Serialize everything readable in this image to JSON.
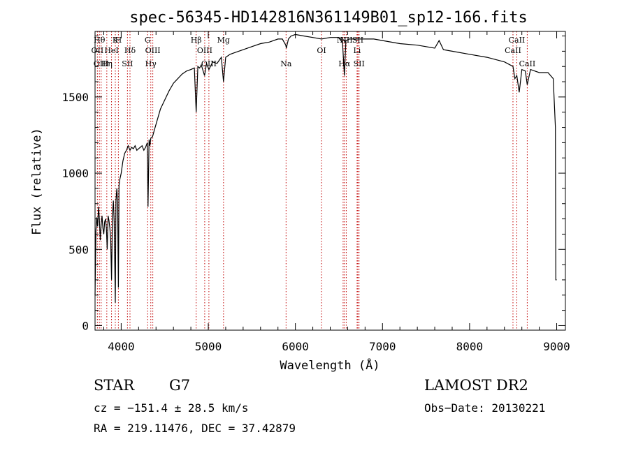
{
  "chart_data": {
    "type": "line",
    "title": "spec-56345-HD142816N361149B01_sp12-166.fits",
    "xlabel": "Wavelength (Å)",
    "ylabel": "Flux (relative)",
    "xlim": [
      3700,
      9100
    ],
    "ylim": [
      -30,
      1930
    ],
    "x_ticks": [
      4000,
      5000,
      6000,
      7000,
      8000,
      9000
    ],
    "y_ticks": [
      0,
      500,
      1000,
      1500
    ],
    "grid": false,
    "series": [
      {
        "x": [
          3700,
          3710,
          3720,
          3730,
          3740,
          3750,
          3760,
          3770,
          3780,
          3790,
          3800,
          3810,
          3820,
          3830,
          3840,
          3850,
          3860,
          3870,
          3880,
          3889,
          3900,
          3910,
          3920,
          3933,
          3940,
          3950,
          3960,
          3968,
          3975,
          3985,
          4000,
          4020,
          4040,
          4060,
          4080,
          4101,
          4120,
          4140,
          4160,
          4180,
          4200,
          4220,
          4240,
          4260,
          4280,
          4300,
          4308,
          4320,
          4330,
          4340,
          4360,
          4380,
          4400,
          4450,
          4500,
          4550,
          4600,
          4650,
          4700,
          4750,
          4800,
          4840,
          4861,
          4880,
          4900,
          4920,
          4957,
          4980,
          5007,
          5050,
          5100,
          5150,
          5175,
          5200,
          5250,
          5300,
          5400,
          5500,
          5600,
          5700,
          5800,
          5850,
          5890,
          5896,
          5920,
          5950,
          6000,
          6100,
          6200,
          6300,
          6400,
          6500,
          6540,
          6563,
          6580,
          6620,
          6700,
          6800,
          6900,
          7000,
          7200,
          7400,
          7600,
          7650,
          7700,
          7800,
          8000,
          8200,
          8400,
          8498,
          8520,
          8542,
          8570,
          8600,
          8640,
          8662,
          8700,
          8800,
          8900,
          8960,
          8985,
          8990,
          9000
        ],
        "y": [
          200,
          620,
          710,
          650,
          780,
          700,
          560,
          660,
          720,
          640,
          600,
          680,
          700,
          640,
          500,
          720,
          690,
          640,
          560,
          300,
          720,
          820,
          680,
          150,
          820,
          900,
          780,
          250,
          920,
          960,
          1000,
          1080,
          1130,
          1150,
          1180,
          1150,
          1170,
          1160,
          1180,
          1150,
          1160,
          1170,
          1180,
          1150,
          1170,
          1200,
          780,
          1220,
          1180,
          1230,
          1240,
          1280,
          1320,
          1420,
          1480,
          1540,
          1590,
          1620,
          1650,
          1670,
          1680,
          1690,
          1400,
          1700,
          1690,
          1710,
          1640,
          1720,
          1680,
          1730,
          1720,
          1760,
          1600,
          1760,
          1780,
          1790,
          1810,
          1830,
          1850,
          1860,
          1880,
          1880,
          1840,
          1820,
          1880,
          1900,
          1910,
          1900,
          1890,
          1880,
          1890,
          1890,
          1870,
          1640,
          1870,
          1880,
          1880,
          1880,
          1880,
          1870,
          1850,
          1840,
          1820,
          1870,
          1810,
          1800,
          1780,
          1760,
          1730,
          1700,
          1620,
          1640,
          1530,
          1680,
          1670,
          1580,
          1680,
          1660,
          1660,
          1620,
          1300,
          300,
          300
        ]
      }
    ],
    "line_markers": [
      {
        "x": 3727,
        "top": "OII",
        "row": 1
      },
      {
        "x": 3750,
        "top": "Hθ",
        "row": 0
      },
      {
        "x": 3770,
        "top": "OIII",
        "row": 2
      },
      {
        "x": 3835,
        "top": "Hη",
        "row": 2
      },
      {
        "x": 3889,
        "top": "HeI",
        "row": 1
      },
      {
        "x": 3933,
        "top": "K",
        "row": 0
      },
      {
        "x": 3968,
        "top": "H",
        "row": 0
      },
      {
        "x": 4101,
        "top": "Hδ",
        "row": 1
      },
      {
        "x": 4072,
        "top": "SII",
        "row": 2
      },
      {
        "x": 4304,
        "top": "G",
        "row": 0
      },
      {
        "x": 4363,
        "top": "OIII",
        "row": 1
      },
      {
        "x": 4340,
        "top": "Hγ",
        "row": 2
      },
      {
        "x": 4861,
        "top": "Hβ",
        "row": 0
      },
      {
        "x": 4959,
        "top": "OIII",
        "row": 1
      },
      {
        "x": 5007,
        "top": "OIII",
        "row": 2
      },
      {
        "x": 5175,
        "top": "Mg",
        "row": 0
      },
      {
        "x": 5893,
        "top": "Na",
        "row": 2
      },
      {
        "x": 6300,
        "top": "OI",
        "row": 1
      },
      {
        "x": 6548,
        "top": "NII",
        "row": 0
      },
      {
        "x": 6563,
        "top": "Hα",
        "row": 2
      },
      {
        "x": 6584,
        "top": "NII",
        "row": 0
      },
      {
        "x": 6708,
        "top": "Li",
        "row": 1
      },
      {
        "x": 6717,
        "top": "SII",
        "row": 0
      },
      {
        "x": 6731,
        "top": "SII",
        "row": 2
      },
      {
        "x": 8498,
        "top": "CaII",
        "row": 1
      },
      {
        "x": 8542,
        "top": "CaII",
        "row": 0
      },
      {
        "x": 8662,
        "top": "CaII",
        "row": 2
      }
    ]
  },
  "info": {
    "object_class": "STAR",
    "subclass": "G7",
    "survey": "LAMOST DR2",
    "cz": "cz = −151.4 ± 28.5 km/s",
    "obs_date": "Obs−Date: 20130221",
    "coords": "RA = 219.11476, DEC =  37.42879"
  },
  "colors": {
    "axis": "#000000",
    "spectrum": "#000000",
    "marker_line": "#c00000"
  }
}
